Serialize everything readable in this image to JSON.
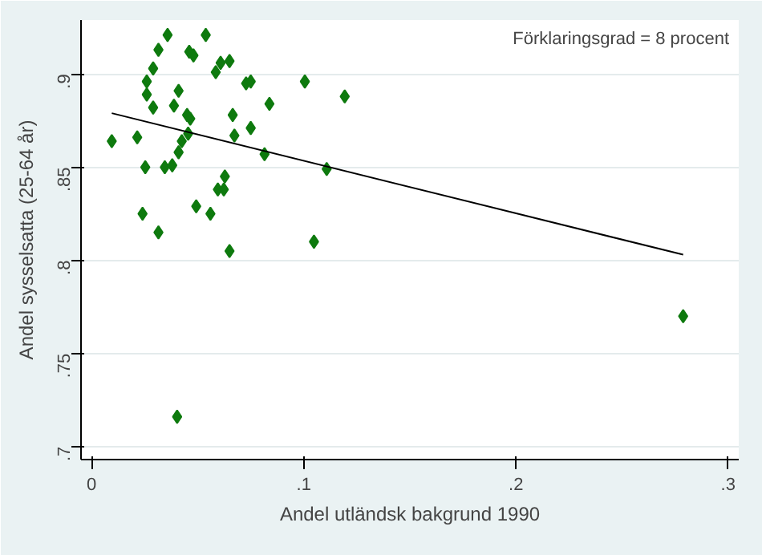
{
  "chart_data": {
    "type": "scatter",
    "xlabel": "Andel utländsk bakgrund 1990",
    "ylabel": "Andel sysselsatta (25-64 år)",
    "annotations": [
      "Förklaringsgrad = 8 procent"
    ],
    "xlim": [
      -0.005,
      0.305
    ],
    "ylim": [
      0.693,
      0.929
    ],
    "xticks": [
      0,
      {
        "value": 0.1,
        "label": ".1"
      },
      {
        "value": 0.2,
        "label": ".2"
      },
      {
        "value": 0.3,
        "label": ".3"
      }
    ],
    "yticks": [
      {
        "value": 0.7,
        "label": ".7"
      },
      {
        "value": 0.75,
        "label": ".75"
      },
      {
        "value": 0.8,
        "label": ".8"
      },
      {
        "value": 0.85,
        "label": ".85"
      },
      {
        "value": 0.9,
        "label": ".9"
      }
    ],
    "grid": "y",
    "marker": "diamond",
    "series": [
      {
        "color": "#0e7a0e",
        "x": [
          0.0095,
          0.0215,
          0.0253,
          0.024,
          0.0315,
          0.026,
          0.026,
          0.029,
          0.029,
          0.0315,
          0.0358,
          0.0345,
          0.038,
          0.0388,
          0.041,
          0.041,
          0.0425,
          0.045,
          0.0465,
          0.0455,
          0.046,
          0.048,
          0.0493,
          0.0538,
          0.056,
          0.0585,
          0.0608,
          0.065,
          0.0595,
          0.0623,
          0.0628,
          0.065,
          0.0665,
          0.0673,
          0.0728,
          0.075,
          0.075,
          0.0838,
          0.0815,
          0.1005,
          0.1048,
          0.0403,
          0.1193,
          0.1108,
          0.2788
        ],
        "values": [
          0.864,
          0.866,
          0.85,
          0.825,
          0.815,
          0.896,
          0.889,
          0.882,
          0.903,
          0.913,
          0.921,
          0.85,
          0.851,
          0.883,
          0.891,
          0.858,
          0.864,
          0.878,
          0.876,
          0.868,
          0.912,
          0.91,
          0.829,
          0.921,
          0.825,
          0.901,
          0.906,
          0.907,
          0.838,
          0.838,
          0.845,
          0.805,
          0.878,
          0.867,
          0.895,
          0.896,
          0.871,
          0.884,
          0.857,
          0.896,
          0.81,
          0.716,
          0.888,
          0.849,
          0.77
        ]
      },
      {
        "type": "line",
        "color": "#000000",
        "marker": "none",
        "x": [
          0.0095,
          0.2788
        ],
        "values": [
          0.879,
          0.803
        ]
      }
    ]
  }
}
